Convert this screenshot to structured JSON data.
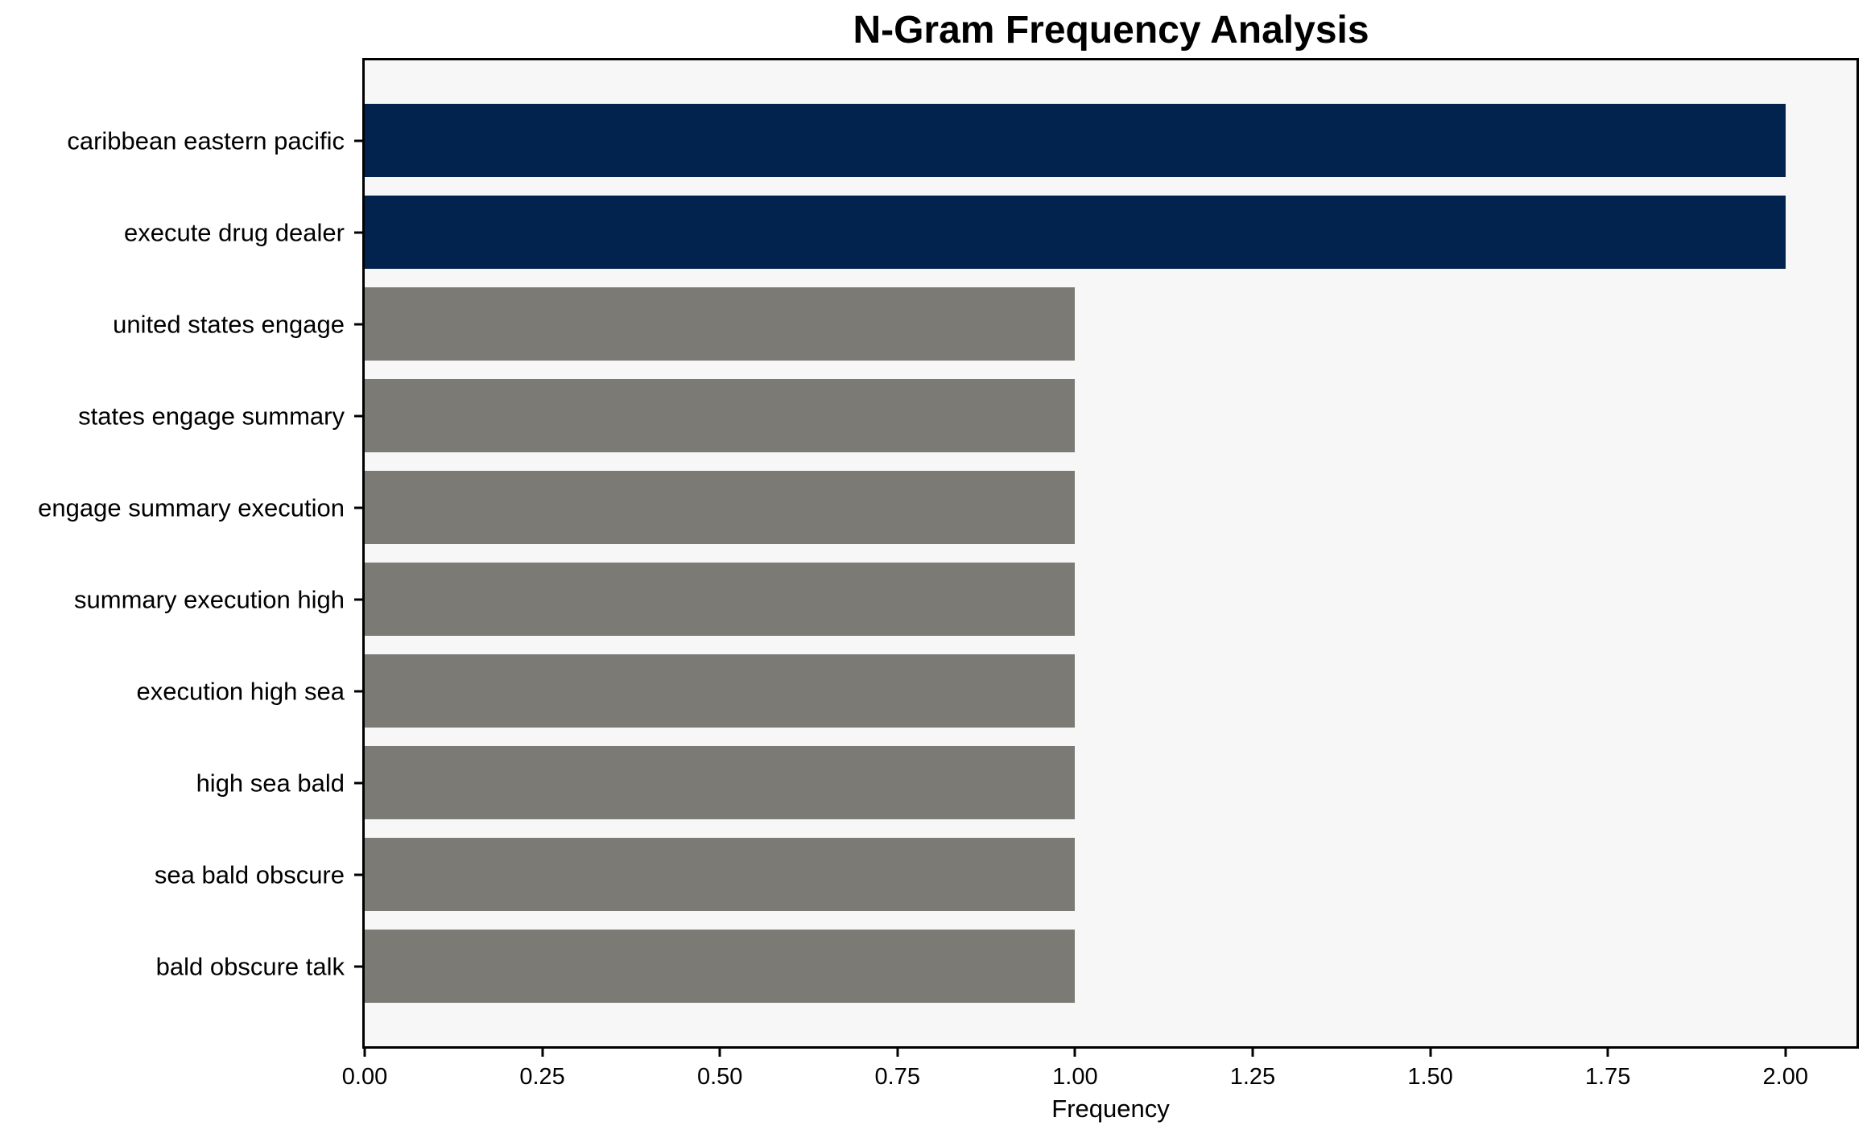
{
  "chart_data": {
    "type": "bar",
    "orientation": "horizontal",
    "title": "N-Gram Frequency Analysis",
    "xlabel": "Frequency",
    "ylabel": "",
    "categories": [
      "caribbean eastern pacific",
      "execute drug dealer",
      "united states engage",
      "states engage summary",
      "engage summary execution",
      "summary execution high",
      "execution high sea",
      "high sea bald",
      "sea bald obscure",
      "bald obscure talk"
    ],
    "values": [
      2,
      2,
      1,
      1,
      1,
      1,
      1,
      1,
      1,
      1
    ],
    "bar_colors": [
      "#02234e",
      "#02234e",
      "#7b7a75",
      "#7b7a75",
      "#7b7a75",
      "#7b7a75",
      "#7b7a75",
      "#7b7a75",
      "#7b7a75",
      "#7b7a75"
    ],
    "xlim": [
      0,
      2.1
    ],
    "xticks": [
      {
        "value": 0.0,
        "label": "0.00"
      },
      {
        "value": 0.25,
        "label": "0.25"
      },
      {
        "value": 0.5,
        "label": "0.50"
      },
      {
        "value": 0.75,
        "label": "0.75"
      },
      {
        "value": 1.0,
        "label": "1.00"
      },
      {
        "value": 1.25,
        "label": "1.25"
      },
      {
        "value": 1.5,
        "label": "1.50"
      },
      {
        "value": 1.75,
        "label": "1.75"
      },
      {
        "value": 2.0,
        "label": "2.00"
      }
    ],
    "grid": false,
    "legend": null,
    "colors": {
      "highlight_bar": "#02234e",
      "default_bar": "#7b7a75",
      "plot_background": "#f7f7f7",
      "figure_background": "#ffffff",
      "spine": "#000000",
      "text": "#000000"
    }
  }
}
